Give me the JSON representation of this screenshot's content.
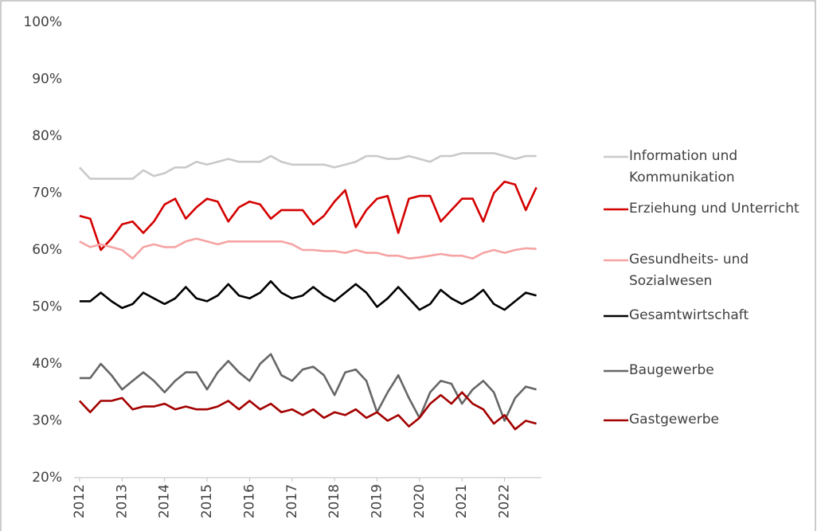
{
  "chart_data": {
    "type": "line",
    "x": [
      2012,
      2012.25,
      2012.5,
      2012.75,
      2013,
      2013.25,
      2013.5,
      2013.75,
      2014,
      2014.25,
      2014.5,
      2014.75,
      2015,
      2015.25,
      2015.5,
      2015.75,
      2016,
      2016.25,
      2016.5,
      2016.75,
      2017,
      2017.25,
      2017.5,
      2017.75,
      2018,
      2018.25,
      2018.5,
      2018.75,
      2019,
      2019.25,
      2019.5,
      2019.75,
      2020,
      2020.25,
      2020.5,
      2020.75,
      2021,
      2021.25,
      2021.5,
      2021.75,
      2022,
      2022.25,
      2022.5,
      2022.75
    ],
    "xlim": [
      2011.87,
      2022.87
    ],
    "xticks": [
      2012,
      2013,
      2014,
      2015,
      2016,
      2017,
      2018,
      2019,
      2020,
      2021,
      2022
    ],
    "ylim": [
      20,
      100
    ],
    "yticks": [
      {
        "value": 20,
        "label": "20%"
      },
      {
        "value": 30,
        "label": "30%"
      },
      {
        "value": 40,
        "label": "40%"
      },
      {
        "value": 50,
        "label": "50%"
      },
      {
        "value": 60,
        "label": "60%"
      },
      {
        "value": 70,
        "label": "70%"
      },
      {
        "value": 80,
        "label": "80%"
      },
      {
        "value": 90,
        "label": "90%"
      },
      {
        "value": 100,
        "label": "100%"
      }
    ],
    "grid": false,
    "legend": "right",
    "series": [
      {
        "name": "Information und Kommunikation",
        "color": "#c9c9c9",
        "values": [
          74.5,
          72.5,
          72.5,
          72.5,
          72.5,
          72.5,
          74,
          73,
          73.5,
          74.5,
          74.5,
          75.5,
          75,
          75.5,
          76,
          75.5,
          75.5,
          75.5,
          76.5,
          75.5,
          75,
          75,
          75,
          75,
          74.5,
          75,
          75.5,
          76.5,
          76.5,
          76,
          76,
          76.5,
          76,
          75.5,
          76.5,
          76.5,
          77,
          77,
          77,
          77,
          76.5,
          76,
          76.5,
          76.5
        ]
      },
      {
        "name": "Erziehung und Unterricht",
        "color": "#d40000",
        "values": [
          66,
          65.5,
          60,
          62,
          64.5,
          65,
          63,
          65,
          68,
          69,
          65.5,
          67.5,
          69,
          68.5,
          65,
          67.5,
          68.5,
          68,
          65.5,
          67,
          67,
          67,
          64.5,
          66,
          68.5,
          70.5,
          64,
          67,
          69,
          69.5,
          63,
          69,
          69.5,
          69.5,
          65,
          67,
          69,
          69,
          65,
          70,
          72,
          71.5,
          67,
          71
        ]
      },
      {
        "name": "Gesundheits- und Sozialwesen",
        "color": "#f5a3a3",
        "values": [
          61.5,
          60.5,
          61,
          60.5,
          60,
          58.5,
          60.5,
          61,
          60.5,
          60.5,
          61.5,
          62,
          61.5,
          61,
          61.5,
          61.5,
          61.5,
          61.5,
          61.5,
          61.5,
          61,
          60,
          60,
          59.8,
          59.8,
          59.5,
          60,
          59.5,
          59.5,
          59,
          59,
          58.5,
          58.7,
          59,
          59.3,
          59,
          59,
          58.5,
          59.5,
          60,
          59.5,
          60,
          60.3,
          60.2
        ]
      },
      {
        "name": "Gesamtwirtschaft",
        "color": "#000000",
        "values": [
          51,
          51,
          52.5,
          51,
          49.8,
          50.5,
          52.5,
          51.5,
          50.5,
          51.5,
          53.5,
          51.5,
          51,
          52,
          54,
          52,
          51.5,
          52.5,
          54.5,
          52.5,
          51.5,
          52,
          53.5,
          52,
          51,
          52.5,
          54,
          52.5,
          50,
          51.5,
          53.5,
          51.5,
          49.5,
          50.5,
          53,
          51.5,
          50.5,
          51.5,
          53,
          50.5,
          49.5,
          51,
          52.5,
          52
        ]
      },
      {
        "name": "Baugewerbe",
        "color": "#666666",
        "values": [
          37.5,
          37.5,
          40,
          38,
          35.5,
          37,
          38.5,
          37,
          35,
          37,
          38.5,
          38.5,
          35.5,
          38.5,
          40.5,
          38.5,
          37,
          40,
          41.7,
          38,
          37,
          39,
          39.5,
          38,
          34.5,
          38.5,
          39,
          37,
          31.5,
          35,
          38,
          34,
          30.5,
          35,
          37,
          36.5,
          33,
          35.5,
          37,
          35,
          30,
          34,
          36,
          35.5
        ]
      },
      {
        "name": "Gastgewerbe",
        "color": "#a30000",
        "values": [
          33.5,
          31.5,
          33.5,
          33.5,
          34,
          32,
          32.5,
          32.5,
          33,
          32,
          32.5,
          32,
          32,
          32.5,
          33.5,
          32,
          33.5,
          32,
          33,
          31.5,
          32,
          31,
          32,
          30.5,
          31.5,
          31,
          32,
          30.5,
          31.5,
          30,
          31,
          29,
          30.5,
          33,
          34.5,
          33,
          35,
          33,
          32,
          29.5,
          31,
          28.5,
          30,
          29.5
        ]
      }
    ]
  }
}
